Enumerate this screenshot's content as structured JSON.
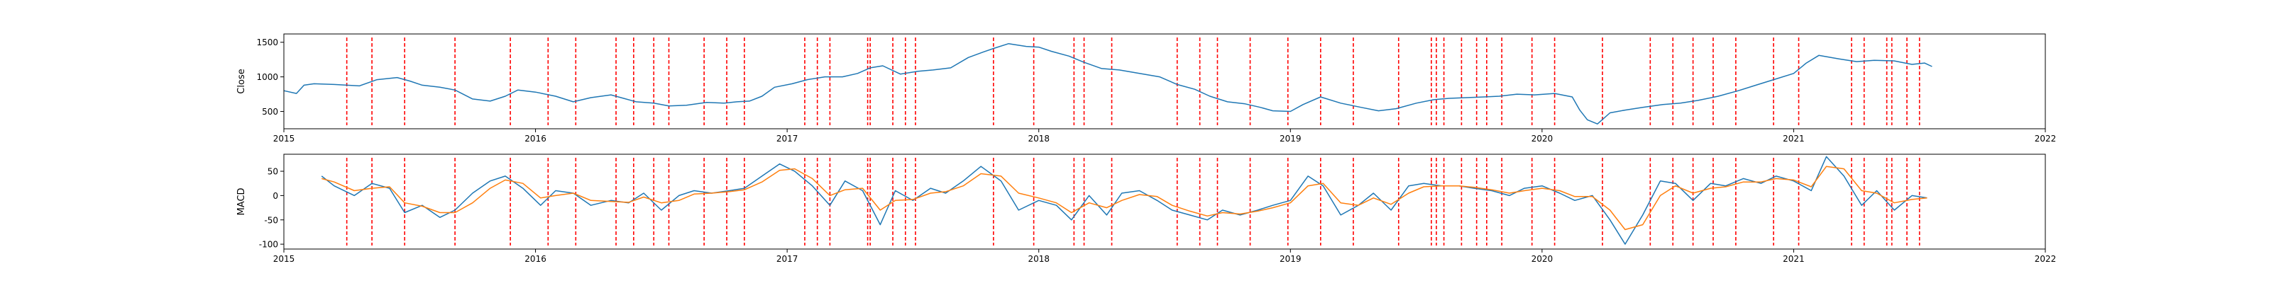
{
  "chart_data": [
    {
      "type": "line",
      "ylabel": "Close",
      "xlim": [
        2015,
        2022
      ],
      "ylim": [
        250,
        1620
      ],
      "x_ticks": [
        "2015",
        "2016",
        "2017",
        "2018",
        "2019",
        "2020",
        "2021",
        "2022"
      ],
      "y_ticks": [
        500,
        1000,
        1500
      ],
      "grid": false,
      "colors": {
        "close": "#1f77b4",
        "signal_markers": "#ff0000"
      },
      "series": [
        {
          "x": [
            2015.0,
            2015.05,
            2015.08,
            2015.12,
            2015.2,
            2015.3,
            2015.37,
            2015.45,
            2015.5,
            2015.55,
            2015.62,
            2015.68,
            2015.75,
            2015.82,
            2015.88,
            2015.93,
            2016.0,
            2016.08,
            2016.15,
            2016.22,
            2016.3,
            2016.35,
            2016.4,
            2016.47,
            2016.53,
            2016.6,
            2016.68,
            2016.75,
            2016.8,
            2016.85,
            2016.9,
            2016.95,
            2017.02,
            2017.08,
            2017.15,
            2017.22,
            2017.28,
            2017.33,
            2017.38,
            2017.45,
            2017.52,
            2017.58,
            2017.65,
            2017.72,
            2017.78,
            2017.82,
            2017.88,
            2017.95,
            2018.0,
            2018.05,
            2018.12,
            2018.18,
            2018.25,
            2018.32,
            2018.4,
            2018.48,
            2018.55,
            2018.62,
            2018.68,
            2018.75,
            2018.82,
            2018.88,
            2018.93,
            2019.0,
            2019.05,
            2019.12,
            2019.2,
            2019.28,
            2019.35,
            2019.42,
            2019.5,
            2019.57,
            2019.63,
            2019.7,
            2019.77,
            2019.83,
            2019.9,
            2019.97,
            2020.05,
            2020.12,
            2020.15,
            2020.18,
            2020.22,
            2020.27,
            2020.33,
            2020.4,
            2020.48,
            2020.55,
            2020.62,
            2020.7,
            2020.78,
            2020.85,
            2020.92,
            2021.0,
            2021.05,
            2021.1,
            2021.18,
            2021.25,
            2021.32,
            2021.4,
            2021.47,
            2021.52,
            2021.55
          ],
          "values": [
            800,
            760,
            880,
            900,
            890,
            870,
            960,
            990,
            940,
            880,
            850,
            810,
            680,
            650,
            720,
            810,
            780,
            720,
            640,
            700,
            740,
            690,
            640,
            620,
            580,
            590,
            630,
            620,
            640,
            650,
            720,
            850,
            900,
            960,
            1000,
            1000,
            1050,
            1130,
            1160,
            1040,
            1080,
            1100,
            1130,
            1280,
            1360,
            1410,
            1480,
            1440,
            1430,
            1370,
            1300,
            1210,
            1120,
            1100,
            1050,
            1000,
            890,
            820,
            720,
            640,
            610,
            560,
            510,
            500,
            600,
            710,
            620,
            560,
            510,
            540,
            620,
            670,
            690,
            700,
            710,
            720,
            750,
            740,
            760,
            710,
            520,
            380,
            320,
            480,
            520,
            560,
            600,
            620,
            660,
            720,
            800,
            880,
            960,
            1050,
            1200,
            1310,
            1260,
            1220,
            1240,
            1230,
            1180,
            1200,
            1150
          ]
        }
      ]
    },
    {
      "type": "line",
      "ylabel": "MACD",
      "xlim": [
        2015,
        2022
      ],
      "ylim": [
        -110,
        85
      ],
      "x_ticks": [
        "2015",
        "2016",
        "2017",
        "2018",
        "2019",
        "2020",
        "2021",
        "2022"
      ],
      "y_ticks": [
        50,
        0,
        -50,
        -100
      ],
      "grid": false,
      "colors": {
        "macd": "#1f77b4",
        "signal": "#ff7f0e",
        "signal_markers": "#ff0000"
      },
      "series": [
        {
          "x": [
            2015.15,
            2015.2,
            2015.28,
            2015.35,
            2015.42,
            2015.48,
            2015.55,
            2015.62,
            2015.68,
            2015.75,
            2015.82,
            2015.88,
            2015.95,
            2016.02,
            2016.08,
            2016.15,
            2016.22,
            2016.3,
            2016.37,
            2016.43,
            2016.5,
            2016.57,
            2016.63,
            2016.7,
            2016.77,
            2016.83,
            2016.9,
            2016.97,
            2017.03,
            2017.1,
            2017.17,
            2017.23,
            2017.3,
            2017.37,
            2017.43,
            2017.5,
            2017.57,
            2017.63,
            2017.7,
            2017.77,
            2017.85,
            2017.92,
            2018.0,
            2018.07,
            2018.13,
            2018.2,
            2018.27,
            2018.33,
            2018.4,
            2018.47,
            2018.53,
            2018.6,
            2018.67,
            2018.73,
            2018.8,
            2018.87,
            2018.93,
            2019.0,
            2019.07,
            2019.13,
            2019.2,
            2019.27,
            2019.33,
            2019.4,
            2019.47,
            2019.53,
            2019.6,
            2019.67,
            2019.73,
            2019.8,
            2019.87,
            2019.93,
            2020.0,
            2020.07,
            2020.13,
            2020.2,
            2020.27,
            2020.33,
            2020.4,
            2020.47,
            2020.53,
            2020.6,
            2020.67,
            2020.73,
            2020.8,
            2020.87,
            2020.93,
            2021.0,
            2021.07,
            2021.13,
            2021.2,
            2021.27,
            2021.33,
            2021.4,
            2021.47,
            2021.53
          ],
          "name": "",
          "values": [
            40,
            20,
            0,
            25,
            15,
            -35,
            -20,
            -45,
            -30,
            5,
            30,
            40,
            15,
            -20,
            10,
            5,
            -20,
            -10,
            -15,
            5,
            -30,
            0,
            10,
            5,
            10,
            15,
            40,
            65,
            50,
            20,
            -20,
            30,
            10,
            -60,
            10,
            -10,
            15,
            5,
            30,
            60,
            30,
            -30,
            -10,
            -20,
            -50,
            0,
            -40,
            5,
            10,
            -10,
            -30,
            -40,
            -50,
            -30,
            -40,
            -30,
            -20,
            -10,
            40,
            20,
            -40,
            -20,
            5,
            -30,
            20,
            25,
            20,
            20,
            15,
            10,
            0,
            15,
            20,
            5,
            -10,
            0,
            -50,
            -100,
            -40,
            30,
            25,
            -10,
            25,
            20,
            35,
            25,
            40,
            30,
            10,
            80,
            40,
            -20,
            10,
            -30,
            0,
            -5
          ]
        },
        {
          "x": [
            2015.15,
            2015.2,
            2015.28,
            2015.35,
            2015.42,
            2015.48,
            2015.55,
            2015.62,
            2015.68,
            2015.75,
            2015.82,
            2015.88,
            2015.95,
            2016.02,
            2016.08,
            2016.15,
            2016.22,
            2016.3,
            2016.37,
            2016.43,
            2016.5,
            2016.57,
            2016.63,
            2016.7,
            2016.77,
            2016.83,
            2016.9,
            2016.97,
            2017.03,
            2017.1,
            2017.17,
            2017.23,
            2017.3,
            2017.37,
            2017.43,
            2017.5,
            2017.57,
            2017.63,
            2017.7,
            2017.77,
            2017.85,
            2017.92,
            2018.0,
            2018.07,
            2018.13,
            2018.2,
            2018.27,
            2018.33,
            2018.4,
            2018.47,
            2018.53,
            2018.6,
            2018.67,
            2018.73,
            2018.8,
            2018.87,
            2018.93,
            2019.0,
            2019.07,
            2019.13,
            2019.2,
            2019.27,
            2019.33,
            2019.4,
            2019.47,
            2019.53,
            2019.6,
            2019.67,
            2019.73,
            2019.8,
            2019.87,
            2019.93,
            2020.0,
            2020.07,
            2020.13,
            2020.2,
            2020.27,
            2020.33,
            2020.4,
            2020.47,
            2020.53,
            2020.6,
            2020.67,
            2020.73,
            2020.8,
            2020.87,
            2020.93,
            2021.0,
            2021.07,
            2021.13,
            2021.2,
            2021.27,
            2021.33,
            2021.4,
            2021.47,
            2021.53
          ],
          "name": "",
          "values": [
            35,
            28,
            10,
            15,
            18,
            -15,
            -22,
            -35,
            -35,
            -15,
            15,
            32,
            25,
            -5,
            0,
            5,
            -10,
            -12,
            -14,
            -3,
            -15,
            -10,
            3,
            5,
            8,
            12,
            28,
            52,
            55,
            35,
            0,
            12,
            15,
            -30,
            -10,
            -8,
            5,
            8,
            20,
            45,
            40,
            5,
            -5,
            -15,
            -35,
            -15,
            -25,
            -10,
            2,
            -2,
            -20,
            -32,
            -42,
            -35,
            -38,
            -32,
            -25,
            -15,
            20,
            25,
            -15,
            -20,
            -5,
            -18,
            5,
            18,
            20,
            20,
            17,
            12,
            5,
            10,
            15,
            10,
            -2,
            -2,
            -30,
            -70,
            -60,
            0,
            20,
            5,
            15,
            18,
            28,
            28,
            35,
            32,
            18,
            60,
            55,
            10,
            5,
            -15,
            -8,
            -5
          ]
        }
      ]
    }
  ],
  "signal_dates": [
    2015.25,
    2015.35,
    2015.48,
    2015.68,
    2015.9,
    2016.05,
    2016.16,
    2016.32,
    2016.39,
    2016.47,
    2016.53,
    2016.67,
    2016.76,
    2016.83,
    2017.07,
    2017.12,
    2017.17,
    2017.32,
    2017.33,
    2017.42,
    2017.47,
    2017.51,
    2017.82,
    2017.98,
    2018.14,
    2018.18,
    2018.29,
    2018.55,
    2018.64,
    2018.71,
    2018.84,
    2018.99,
    2019.12,
    2019.25,
    2019.43,
    2019.56,
    2019.58,
    2019.61,
    2019.68,
    2019.74,
    2019.78,
    2019.84,
    2019.96,
    2020.05,
    2020.24,
    2020.43,
    2020.52,
    2020.6,
    2020.68,
    2020.77,
    2020.92,
    2021.02,
    2021.23,
    2021.28,
    2021.37,
    2021.39,
    2021.45,
    2021.5
  ]
}
